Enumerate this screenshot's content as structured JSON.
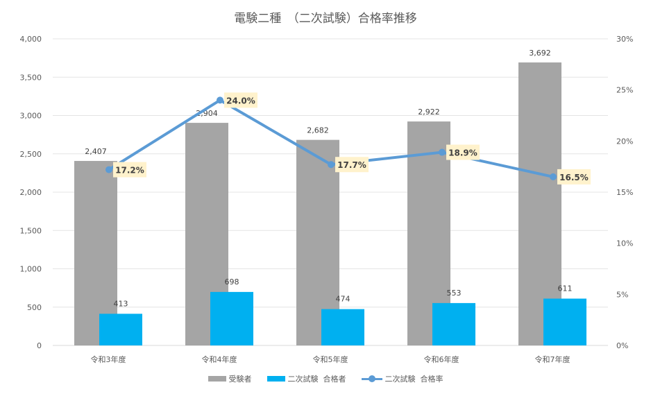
{
  "chart_data": {
    "type": "bar",
    "title": "電験二種　（二次試験）合格率推移",
    "categories": [
      "令和3年度",
      "令和4年度",
      "令和5年度",
      "令和6年度",
      "令和7年度"
    ],
    "series": [
      {
        "name": "受験者",
        "type": "bar",
        "axis": "left",
        "color": "#a5a5a5",
        "values": [
          2407,
          2904,
          2682,
          2922,
          3692
        ],
        "labels": [
          "2,407",
          "2,904",
          "2,682",
          "2,922",
          "3,692"
        ]
      },
      {
        "name": "二次試験  合格者",
        "type": "bar",
        "axis": "left",
        "color": "#00b0f0",
        "values": [
          413,
          698,
          474,
          553,
          611
        ],
        "labels": [
          "413",
          "698",
          "474",
          "553",
          "611"
        ]
      },
      {
        "name": "二次試験  合格率",
        "type": "line",
        "axis": "right",
        "color": "#5b9bd5",
        "values": [
          17.2,
          24.0,
          17.7,
          18.9,
          16.5
        ],
        "labels": [
          "17.2%",
          "24.0%",
          "17.7%",
          "18.9%",
          "16.5%"
        ]
      }
    ],
    "y_left": {
      "range": [
        0,
        4000
      ],
      "ticks": [
        "0",
        "500",
        "1,000",
        "1,500",
        "2,000",
        "2,500",
        "3,000",
        "3,500",
        "4,000"
      ]
    },
    "y_right": {
      "range": [
        0,
        30
      ],
      "ticks": [
        "0%",
        "5%",
        "10%",
        "15%",
        "20%",
        "25%",
        "30%"
      ]
    },
    "grid": true,
    "legend": "bottom"
  }
}
